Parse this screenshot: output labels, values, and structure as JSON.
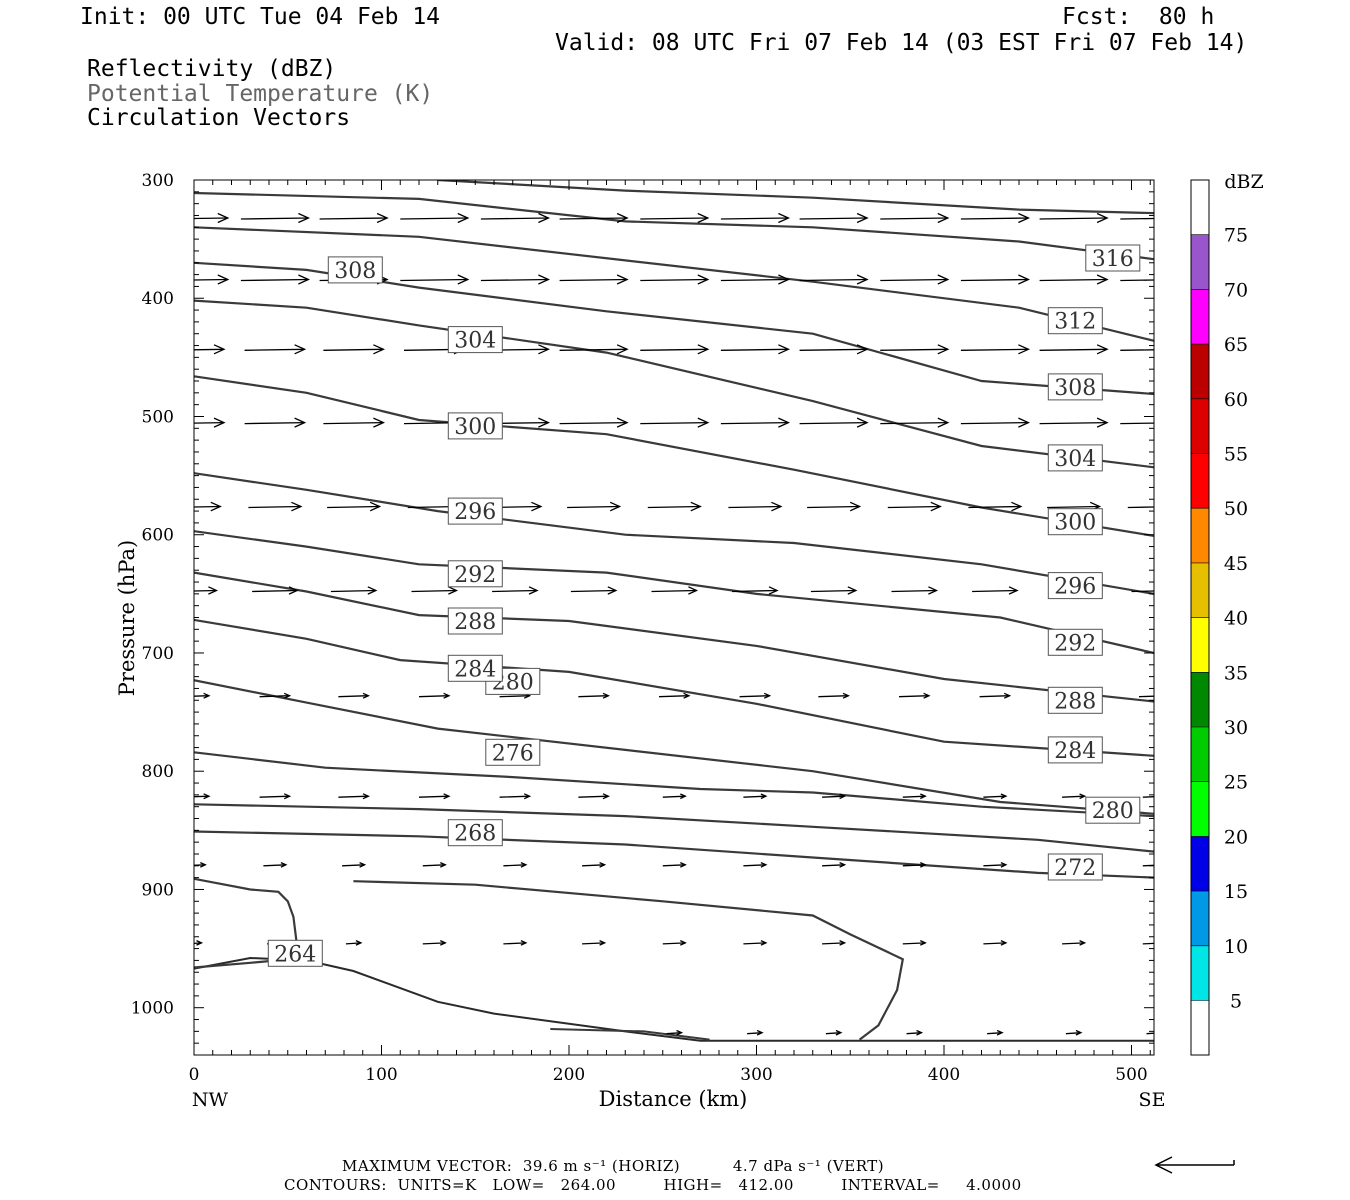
{
  "header": {
    "init": "Init: 00 UTC Tue 04 Feb 14",
    "fcst": "Fcst:  80 h",
    "valid": "Valid: 08 UTC Fri 07 Feb 14 (03 EST Fri 07 Feb 14)",
    "fields": [
      "Reflectivity (dBZ)",
      "Potential Temperature (K)",
      "Circulation Vectors"
    ]
  },
  "footer": {
    "max_vector": "MAXIMUM VECTOR:  39.6 m s⁻¹ (HORIZ)          4.7 dPa s⁻¹ (VERT)",
    "contours": "CONTOURS:  UNITS=K   LOW=   264.00         HIGH=   412.00         INTERVAL=     4.0000"
  },
  "chart_data": {
    "type": "cross-section",
    "xlabel": "Distance (km)",
    "ylabel": "Pressure (hPa)",
    "x_ticks": [
      0,
      100,
      200,
      300,
      400,
      500
    ],
    "y_ticks": [
      300,
      400,
      500,
      600,
      700,
      800,
      900,
      1000
    ],
    "xlim": [
      0,
      512
    ],
    "ylim": [
      300,
      1040
    ],
    "x_end_labels": {
      "left": "NW",
      "right": "SE"
    },
    "colorbar": {
      "unit": "dBZ",
      "levels": [
        5,
        10,
        15,
        20,
        25,
        30,
        35,
        40,
        45,
        50,
        55,
        60,
        65,
        70,
        75
      ],
      "colors": [
        "#ffffff",
        "#00e5e5",
        "#0099e6",
        "#0000e6",
        "#00ff00",
        "#00cc00",
        "#008800",
        "#ffff00",
        "#e6c000",
        "#ff8800",
        "#ff0000",
        "#dd0000",
        "#bb0000",
        "#ff00ff",
        "#9955cc",
        "#ffffff"
      ]
    },
    "theta_contours": [
      {
        "value": 268,
        "points": [
          [
            0,
            851
          ],
          [
            120,
            855
          ],
          [
            230,
            862
          ],
          [
            330,
            873
          ],
          [
            450,
            886
          ],
          [
            512,
            890
          ]
        ]
      },
      {
        "value": 272,
        "points": [
          [
            0,
            828
          ],
          [
            120,
            832
          ],
          [
            230,
            838
          ],
          [
            330,
            847
          ],
          [
            450,
            858
          ],
          [
            512,
            868
          ]
        ]
      },
      {
        "value": 276,
        "points": [
          [
            0,
            784
          ],
          [
            70,
            797
          ],
          [
            170,
            805
          ],
          [
            270,
            815
          ],
          [
            330,
            818
          ],
          [
            420,
            830
          ],
          [
            512,
            838
          ]
        ]
      },
      {
        "value": 280,
        "points": [
          [
            0,
            723
          ],
          [
            60,
            742
          ],
          [
            130,
            764
          ],
          [
            230,
            782
          ],
          [
            330,
            800
          ],
          [
            430,
            826
          ],
          [
            512,
            836
          ]
        ]
      },
      {
        "value": 284,
        "points": [
          [
            0,
            672
          ],
          [
            60,
            688
          ],
          [
            110,
            706
          ],
          [
            200,
            716
          ],
          [
            300,
            743
          ],
          [
            400,
            775
          ],
          [
            512,
            787
          ]
        ]
      },
      {
        "value": 288,
        "points": [
          [
            0,
            632
          ],
          [
            60,
            648
          ],
          [
            120,
            668
          ],
          [
            200,
            673
          ],
          [
            300,
            694
          ],
          [
            400,
            722
          ],
          [
            512,
            741
          ]
        ]
      },
      {
        "value": 292,
        "points": [
          [
            0,
            597
          ],
          [
            60,
            610
          ],
          [
            120,
            625
          ],
          [
            220,
            632
          ],
          [
            300,
            650
          ],
          [
            430,
            670
          ],
          [
            512,
            700
          ]
        ]
      },
      {
        "value": 296,
        "points": [
          [
            0,
            548
          ],
          [
            60,
            562
          ],
          [
            130,
            580
          ],
          [
            230,
            600
          ],
          [
            320,
            607
          ],
          [
            420,
            625
          ],
          [
            512,
            650
          ]
        ]
      },
      {
        "value": 300,
        "points": [
          [
            0,
            466
          ],
          [
            60,
            480
          ],
          [
            120,
            503
          ],
          [
            220,
            515
          ],
          [
            320,
            545
          ],
          [
            420,
            577
          ],
          [
            512,
            601
          ]
        ]
      },
      {
        "value": 304,
        "points": [
          [
            0,
            402
          ],
          [
            60,
            408
          ],
          [
            120,
            423
          ],
          [
            220,
            446
          ],
          [
            330,
            487
          ],
          [
            420,
            525
          ],
          [
            512,
            543
          ]
        ]
      },
      {
        "value": 308,
        "points": [
          [
            0,
            370
          ],
          [
            60,
            376
          ],
          [
            120,
            391
          ],
          [
            220,
            411
          ],
          [
            330,
            430
          ],
          [
            420,
            470
          ],
          [
            512,
            481
          ]
        ]
      },
      {
        "value": 312,
        "points": [
          [
            0,
            340
          ],
          [
            120,
            348
          ],
          [
            230,
            368
          ],
          [
            330,
            386
          ],
          [
            440,
            408
          ],
          [
            512,
            436
          ]
        ]
      },
      {
        "value": 316,
        "points": [
          [
            0,
            311
          ],
          [
            120,
            316
          ],
          [
            230,
            335
          ],
          [
            330,
            340
          ],
          [
            440,
            352
          ],
          [
            512,
            367
          ]
        ]
      },
      {
        "value": 320,
        "points": [
          [
            130,
            300
          ],
          [
            230,
            309
          ],
          [
            330,
            315
          ],
          [
            440,
            325
          ],
          [
            512,
            328
          ]
        ]
      }
    ],
    "theta_labels": [
      {
        "text": "264",
        "x": 54,
        "p": 954
      },
      {
        "text": "268",
        "x": 150,
        "p": 852
      },
      {
        "text": "272",
        "x": 470,
        "p": 881
      },
      {
        "text": "276",
        "x": 170,
        "p": 784
      },
      {
        "text": "280",
        "x": 170,
        "p": 724
      },
      {
        "text": "280",
        "x": 490,
        "p": 833
      },
      {
        "text": "284",
        "x": 150,
        "p": 713
      },
      {
        "text": "284",
        "x": 470,
        "p": 782
      },
      {
        "text": "288",
        "x": 150,
        "p": 673
      },
      {
        "text": "288",
        "x": 470,
        "p": 740
      },
      {
        "text": "292",
        "x": 150,
        "p": 633
      },
      {
        "text": "292",
        "x": 470,
        "p": 691
      },
      {
        "text": "296",
        "x": 150,
        "p": 580
      },
      {
        "text": "296",
        "x": 470,
        "p": 643
      },
      {
        "text": "300",
        "x": 150,
        "p": 508
      },
      {
        "text": "300",
        "x": 470,
        "p": 589
      },
      {
        "text": "304",
        "x": 150,
        "p": 435
      },
      {
        "text": "304",
        "x": 470,
        "p": 535
      },
      {
        "text": "308",
        "x": 86,
        "p": 376
      },
      {
        "text": "308",
        "x": 470,
        "p": 475
      },
      {
        "text": "312",
        "x": 470,
        "p": 419
      },
      {
        "text": "316",
        "x": 490,
        "p": 366
      }
    ],
    "terrain": {
      "value": 264,
      "outer": [
        [
          0,
          967
        ],
        [
          30,
          958
        ],
        [
          60,
          960
        ],
        [
          85,
          969
        ],
        [
          130,
          995
        ],
        [
          160,
          1005
        ],
        [
          230,
          1020
        ],
        [
          270,
          1028
        ],
        [
          512,
          1028
        ]
      ],
      "inner_left": [
        [
          0,
          966
        ],
        [
          30,
          962
        ],
        [
          65,
          957
        ],
        [
          50,
          952
        ],
        [
          55,
          948
        ],
        [
          53,
          923
        ],
        [
          50,
          910
        ],
        [
          45,
          902
        ],
        [
          30,
          900
        ],
        [
          0,
          891
        ]
      ],
      "inner_right": [
        [
          190,
          1018
        ],
        [
          240,
          1020
        ],
        [
          275,
          1027
        ]
      ],
      "ridge": [
        [
          355,
          1027
        ],
        [
          365,
          1015
        ],
        [
          375,
          985
        ],
        [
          378,
          959
        ],
        [
          350,
          938
        ],
        [
          330,
          922
        ],
        [
          250,
          910
        ],
        [
          150,
          896
        ],
        [
          85,
          893
        ]
      ]
    },
    "vectors": {
      "x": [
        0,
        43,
        85,
        128,
        171,
        213,
        256,
        299,
        341,
        384,
        427,
        469,
        512
      ],
      "rows": [
        {
          "p": 333,
          "u": [
            0.9,
            0.9,
            0.9,
            0.9,
            0.9,
            0.9,
            0.9,
            0.9,
            0.9,
            0.9,
            0.9,
            0.9,
            0.9
          ]
        },
        {
          "p": 385,
          "u": [
            0.9,
            0.9,
            0.9,
            0.9,
            0.9,
            0.9,
            0.9,
            0.9,
            0.9,
            0.9,
            0.9,
            0.9,
            0.9
          ]
        },
        {
          "p": 444,
          "u": [
            0.8,
            0.8,
            0.8,
            0.8,
            0.9,
            0.9,
            0.9,
            0.9,
            0.9,
            0.9,
            0.9,
            0.9,
            0.9
          ]
        },
        {
          "p": 506,
          "u": [
            0.8,
            0.8,
            0.8,
            0.8,
            0.9,
            0.9,
            0.9,
            0.9,
            0.9,
            0.9,
            0.9,
            0.9,
            0.9
          ]
        },
        {
          "p": 577,
          "u": [
            0.7,
            0.7,
            0.7,
            0.7,
            0.7,
            0.7,
            0.7,
            0.7,
            0.7,
            0.7,
            0.7,
            0.7,
            0.7
          ]
        },
        {
          "p": 648,
          "u": [
            0.6,
            0.6,
            0.6,
            0.6,
            0.6,
            0.6,
            0.6,
            0.6,
            0.6,
            0.6,
            0.6,
            0.6,
            0.6
          ]
        },
        {
          "p": 737,
          "u": [
            0.4,
            0.4,
            0.4,
            0.4,
            0.4,
            0.4,
            0.4,
            0.4,
            0.4,
            0.4,
            0.4,
            0.4,
            0.4
          ]
        },
        {
          "p": 822,
          "u": [
            0.4,
            0.4,
            0.4,
            0.4,
            0.4,
            0.4,
            0.3,
            0.3,
            0.3,
            0.3,
            0.3,
            0.3,
            0.3
          ]
        },
        {
          "p": 880,
          "u": [
            0.3,
            0.3,
            0.3,
            0.3,
            0.3,
            0.3,
            0.3,
            0.3,
            0.3,
            0.3,
            0.3,
            0.3,
            0.3
          ]
        },
        {
          "p": 946,
          "u": [
            0.2,
            0.2,
            0.2,
            0.3,
            0.3,
            0.3,
            0.3,
            0.3,
            0.3,
            0.3,
            0.3,
            0.3,
            0.3
          ]
        },
        {
          "p": 1022,
          "u": [
            0,
            0,
            0,
            0,
            0,
            0,
            0.2,
            0.2,
            0.2,
            0.2,
            0.2,
            0.2,
            0.2
          ]
        }
      ]
    }
  }
}
